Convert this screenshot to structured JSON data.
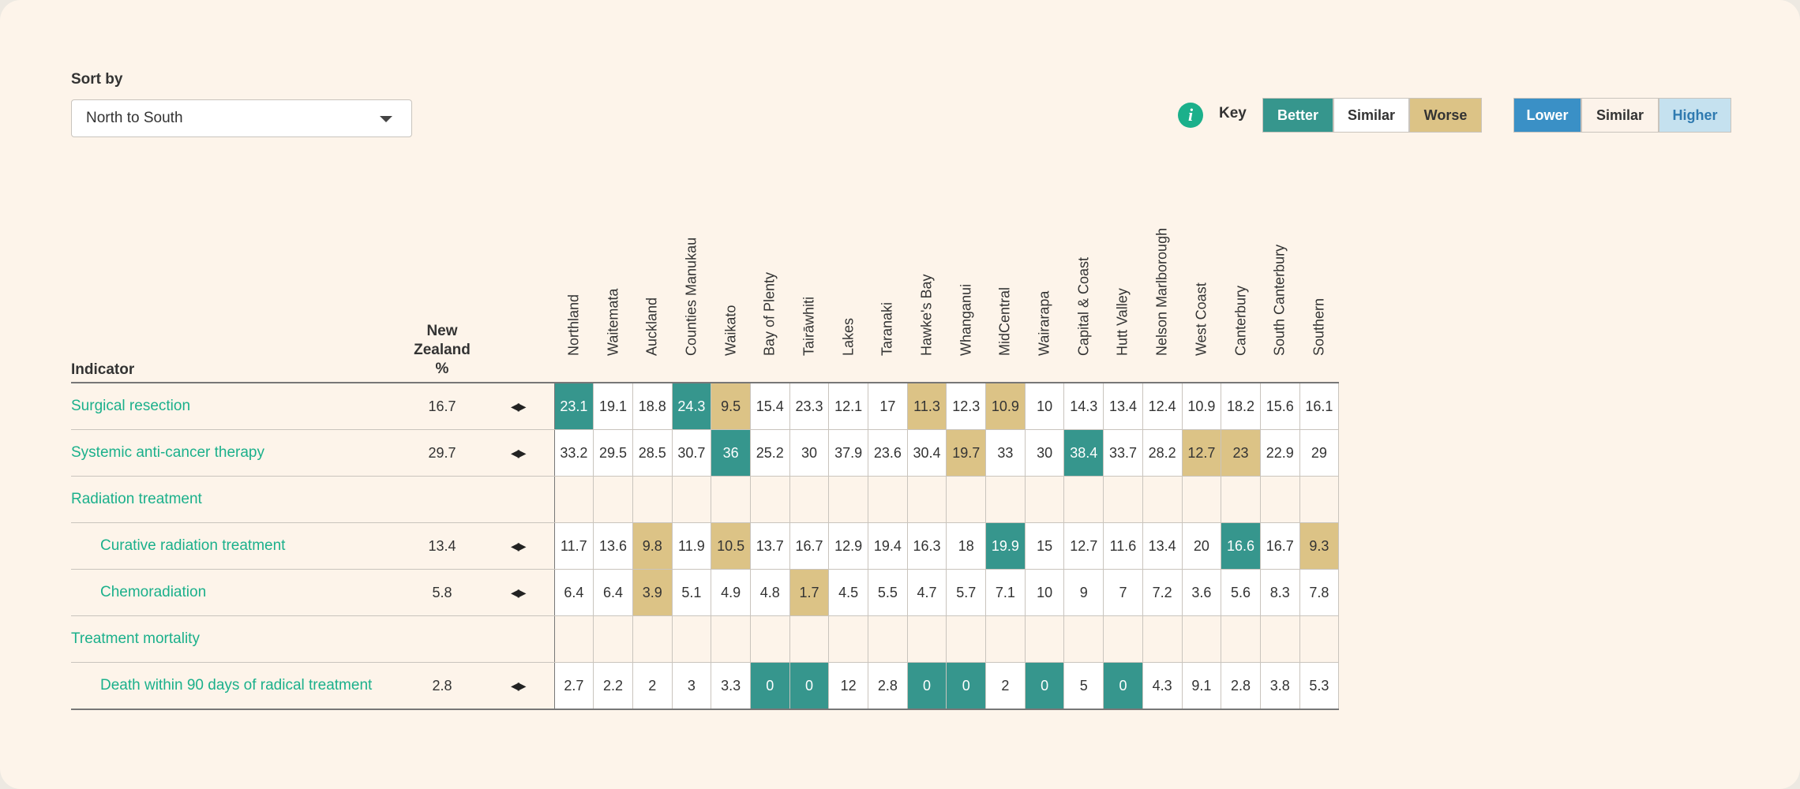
{
  "sort": {
    "label": "Sort by",
    "value": "North to South"
  },
  "key": {
    "label": "Key",
    "group1": [
      "Better",
      "Similar",
      "Worse"
    ],
    "group2": [
      "Lower",
      "Similar",
      "Higher"
    ]
  },
  "colors": {
    "better": "#36968d",
    "worse": "#dcc386",
    "lower": "#3a90c6",
    "higher": "#c5e1ef",
    "link": "#1bb08b"
  },
  "table": {
    "indicator_header": "Indicator",
    "nz_header_line1": "New Zealand",
    "nz_header_line2": "%",
    "regions": [
      "Northland",
      "Waitemata",
      "Auckland",
      "Counties Manukau",
      "Waikato",
      "Bay of Plenty",
      "Tairāwhiti",
      "Lakes",
      "Taranaki",
      "Hawke's Bay",
      "Whanganui",
      "MidCentral",
      "Wairarapa",
      "Capital & Coast",
      "Hutt Valley",
      "Nelson Marlborough",
      "West Coast",
      "Canterbury",
      "South Canterbury",
      "Southern"
    ],
    "rows": [
      {
        "indicator": "Surgical resection",
        "sub": false,
        "nz": "16.7",
        "has_arrows": true,
        "values": [
          "23.1",
          "19.1",
          "18.8",
          "24.3",
          "9.5",
          "15.4",
          "23.3",
          "12.1",
          "17",
          "11.3",
          "12.3",
          "10.9",
          "10",
          "14.3",
          "13.4",
          "12.4",
          "10.9",
          "18.2",
          "15.6",
          "16.1"
        ],
        "status": [
          "better",
          "",
          "",
          "better",
          "worse",
          "",
          "",
          "",
          "",
          "worse",
          "",
          "worse",
          "",
          "",
          "",
          "",
          "",
          "",
          "",
          ""
        ]
      },
      {
        "indicator": "Systemic anti-cancer therapy",
        "sub": false,
        "nz": "29.7",
        "has_arrows": true,
        "values": [
          "33.2",
          "29.5",
          "28.5",
          "30.7",
          "36",
          "25.2",
          "30",
          "37.9",
          "23.6",
          "30.4",
          "19.7",
          "33",
          "30",
          "38.4",
          "33.7",
          "28.2",
          "12.7",
          "23",
          "22.9",
          "29"
        ],
        "status": [
          "",
          "",
          "",
          "",
          "better",
          "",
          "",
          "",
          "",
          "",
          "worse",
          "",
          "",
          "better",
          "",
          "",
          "worse",
          "worse",
          "",
          ""
        ]
      },
      {
        "indicator": "Radiation treatment",
        "sub": false,
        "nz": "",
        "has_arrows": false,
        "values": [
          "",
          "",
          "",
          "",
          "",
          "",
          "",
          "",
          "",
          "",
          "",
          "",
          "",
          "",
          "",
          "",
          "",
          "",
          "",
          ""
        ],
        "status": [
          "empty",
          "empty",
          "empty",
          "empty",
          "empty",
          "empty",
          "empty",
          "empty",
          "empty",
          "empty",
          "empty",
          "empty",
          "empty",
          "empty",
          "empty",
          "empty",
          "empty",
          "empty",
          "empty",
          "empty"
        ]
      },
      {
        "indicator": "Curative radiation treatment",
        "sub": true,
        "nz": "13.4",
        "has_arrows": true,
        "values": [
          "11.7",
          "13.6",
          "9.8",
          "11.9",
          "10.5",
          "13.7",
          "16.7",
          "12.9",
          "19.4",
          "16.3",
          "18",
          "19.9",
          "15",
          "12.7",
          "11.6",
          "13.4",
          "20",
          "16.6",
          "16.7",
          "9.3"
        ],
        "status": [
          "",
          "",
          "worse",
          "",
          "worse",
          "",
          "",
          "",
          "",
          "",
          "",
          "better",
          "",
          "",
          "",
          "",
          "",
          "better",
          "",
          "worse"
        ]
      },
      {
        "indicator": "Chemoradiation",
        "sub": true,
        "nz": "5.8",
        "has_arrows": true,
        "values": [
          "6.4",
          "6.4",
          "3.9",
          "5.1",
          "4.9",
          "4.8",
          "1.7",
          "4.5",
          "5.5",
          "4.7",
          "5.7",
          "7.1",
          "10",
          "9",
          "7",
          "7.2",
          "3.6",
          "5.6",
          "8.3",
          "7.8"
        ],
        "status": [
          "",
          "",
          "worse",
          "",
          "",
          "",
          "worse",
          "",
          "",
          "",
          "",
          "",
          "",
          "",
          "",
          "",
          "",
          "",
          "",
          ""
        ]
      },
      {
        "indicator": "Treatment mortality",
        "sub": false,
        "nz": "",
        "has_arrows": false,
        "values": [
          "",
          "",
          "",
          "",
          "",
          "",
          "",
          "",
          "",
          "",
          "",
          "",
          "",
          "",
          "",
          "",
          "",
          "",
          "",
          ""
        ],
        "status": [
          "empty",
          "empty",
          "empty",
          "empty",
          "empty",
          "empty",
          "empty",
          "empty",
          "empty",
          "empty",
          "empty",
          "empty",
          "empty",
          "empty",
          "empty",
          "empty",
          "empty",
          "empty",
          "empty",
          "empty"
        ]
      },
      {
        "indicator": "Death within 90 days of radical treatment",
        "sub": true,
        "nz": "2.8",
        "has_arrows": true,
        "values": [
          "2.7",
          "2.2",
          "2",
          "3",
          "3.3",
          "0",
          "0",
          "12",
          "2.8",
          "0",
          "0",
          "2",
          "0",
          "5",
          "0",
          "4.3",
          "9.1",
          "2.8",
          "3.8",
          "5.3"
        ],
        "status": [
          "",
          "",
          "",
          "",
          "",
          "better",
          "better",
          "",
          "",
          "better",
          "better",
          "",
          "better",
          "",
          "better",
          "",
          "",
          "",
          "",
          ""
        ]
      }
    ]
  }
}
